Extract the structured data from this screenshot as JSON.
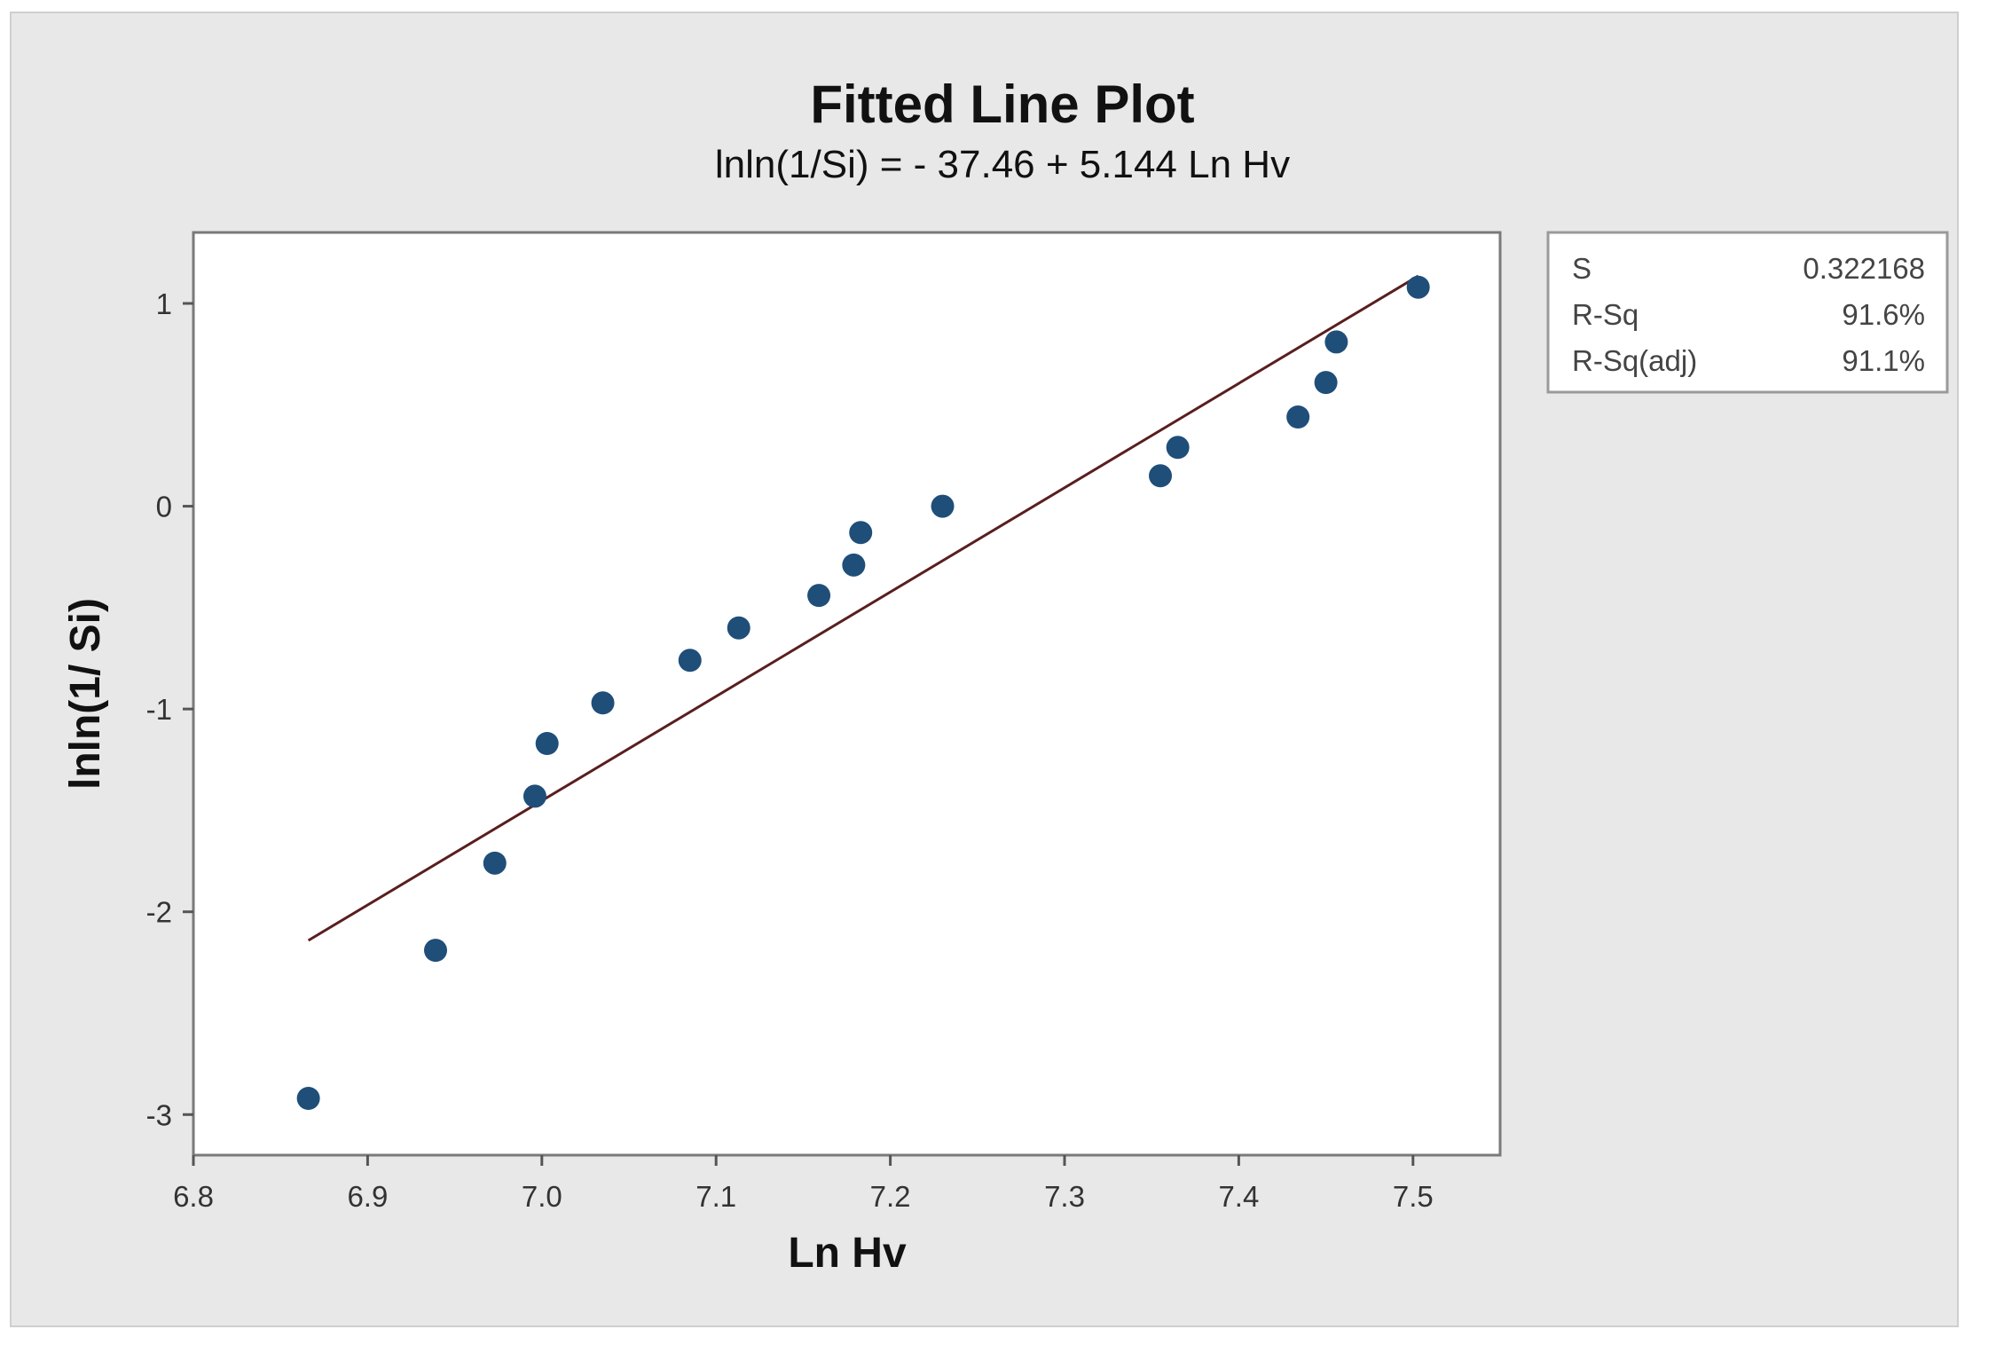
{
  "chart_data": {
    "type": "scatter",
    "title": "Fitted Line Plot",
    "subtitle": "lnln(1/Si) = - 37.46 + 5.144 Ln Hv",
    "xlabel": "Ln Hv",
    "ylabel": "lnln(1/ Si)",
    "xlim": [
      6.8,
      7.55
    ],
    "ylim": [
      -3.2,
      1.35
    ],
    "x_ticks": [
      6.8,
      6.9,
      7.0,
      7.1,
      7.2,
      7.3,
      7.4,
      7.5
    ],
    "x_tick_labels": [
      "6.8",
      "6.9",
      "7.0",
      "7.1",
      "7.2",
      "7.3",
      "7.4",
      "7.5"
    ],
    "y_ticks": [
      1,
      0,
      -1,
      -2,
      -3
    ],
    "y_tick_labels": [
      "1",
      "0",
      "-1",
      "-2",
      "-3"
    ],
    "grid": false,
    "point_color": "#1f4e79",
    "line_color": "#5a1e1e",
    "points": [
      {
        "x": 6.866,
        "y": -2.92
      },
      {
        "x": 6.939,
        "y": -2.19
      },
      {
        "x": 6.973,
        "y": -1.76
      },
      {
        "x": 6.996,
        "y": -1.43
      },
      {
        "x": 7.003,
        "y": -1.17
      },
      {
        "x": 7.035,
        "y": -0.97
      },
      {
        "x": 7.085,
        "y": -0.76
      },
      {
        "x": 7.113,
        "y": -0.6
      },
      {
        "x": 7.159,
        "y": -0.44
      },
      {
        "x": 7.179,
        "y": -0.29
      },
      {
        "x": 7.183,
        "y": -0.13
      },
      {
        "x": 7.23,
        "y": 0.0
      },
      {
        "x": 7.355,
        "y": 0.15
      },
      {
        "x": 7.365,
        "y": 0.29
      },
      {
        "x": 7.434,
        "y": 0.44
      },
      {
        "x": 7.45,
        "y": 0.61
      },
      {
        "x": 7.456,
        "y": 0.81
      },
      {
        "x": 7.503,
        "y": 1.08
      }
    ],
    "fitted_line": {
      "intercept": -37.46,
      "slope": 5.144,
      "x_range": [
        6.866,
        7.503
      ]
    }
  },
  "stats": [
    {
      "label": "S",
      "value": "0.322168"
    },
    {
      "label": "R-Sq",
      "value": "91.6%"
    },
    {
      "label": "R-Sq(adj)",
      "value": "91.1%"
    }
  ]
}
